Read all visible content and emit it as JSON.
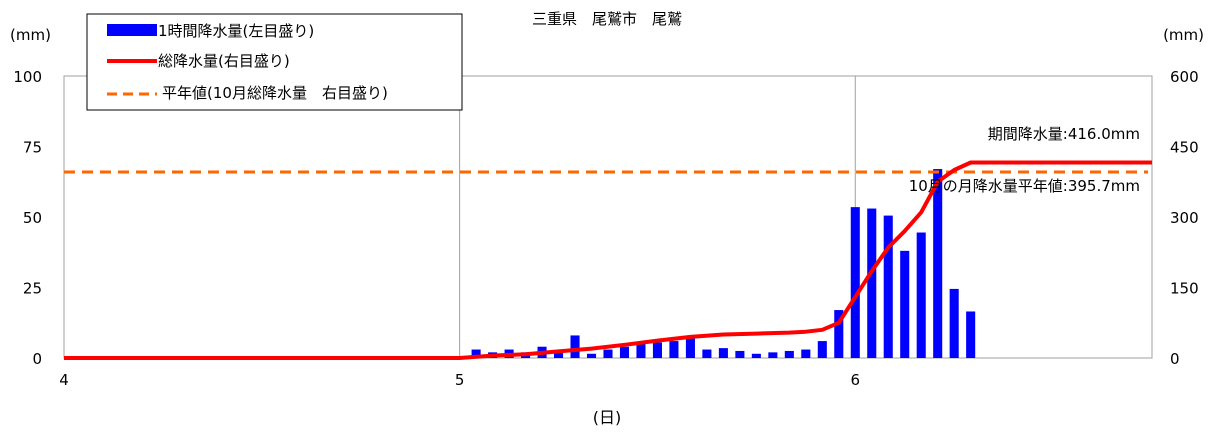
{
  "chart_data": {
    "type": "bar",
    "title": "三重県　尾鷲市　尾鷲",
    "ylabel_left": "(mm)",
    "ylabel_right": "(mm)",
    "xlabel": "(日)",
    "x_ticks": [
      "4",
      "5",
      "6"
    ],
    "ylim_left": [
      0,
      100
    ],
    "yticks_left": [
      "100",
      "75",
      "50",
      "25",
      "0"
    ],
    "ylim_right": [
      0,
      600
    ],
    "yticks_right": [
      "600",
      "450",
      "300",
      "150",
      "0"
    ],
    "x_range_hours": [
      0,
      66
    ],
    "grid": "vertical lines at day boundaries",
    "legend_position": "top-left",
    "series": [
      {
        "name": "1時間降水量(左目盛り)",
        "kind": "bar",
        "axis": "left",
        "color": "#0000ff",
        "x": [
          25,
          26,
          27,
          28,
          29,
          30,
          31,
          32,
          33,
          34,
          35,
          36,
          37,
          38,
          39,
          40,
          41,
          42,
          43,
          44,
          45,
          46,
          47,
          48,
          49,
          50,
          51,
          52,
          53,
          54,
          55,
          56
        ],
        "values": [
          3,
          2,
          3,
          2,
          4,
          2,
          8,
          1.5,
          3,
          4,
          5,
          5.5,
          6,
          7,
          3,
          3.5,
          2.5,
          1.5,
          2,
          2.5,
          3,
          6,
          17,
          53.5,
          53,
          50.5,
          38,
          44.5,
          67,
          24.5,
          16.5,
          0
        ]
      },
      {
        "name": "総降水量(右目盛り)",
        "kind": "line",
        "axis": "right",
        "color": "#ff0000",
        "x": [
          0,
          24,
          26,
          28,
          30,
          32,
          34,
          36,
          38,
          40,
          42,
          44,
          45,
          46,
          47,
          48,
          49,
          50,
          51,
          52,
          53,
          54,
          55,
          56,
          60,
          66
        ],
        "values": [
          0,
          0,
          5,
          8,
          14,
          20,
          28,
          37,
          45,
          50,
          52,
          54,
          56,
          60,
          75,
          130,
          185,
          235,
          270,
          310,
          375,
          400,
          416,
          416,
          416,
          416
        ]
      },
      {
        "name": "平年値(10月総降水量　右目盛り)",
        "kind": "hline",
        "axis": "right",
        "color": "#ff6600",
        "value": 395.7
      }
    ],
    "annotations": [
      {
        "text": "期間降水量:416.0mm",
        "color": "#ff0000"
      },
      {
        "text": "10月の月降水量平年値:395.7mm",
        "color": "#ff6600"
      }
    ]
  }
}
